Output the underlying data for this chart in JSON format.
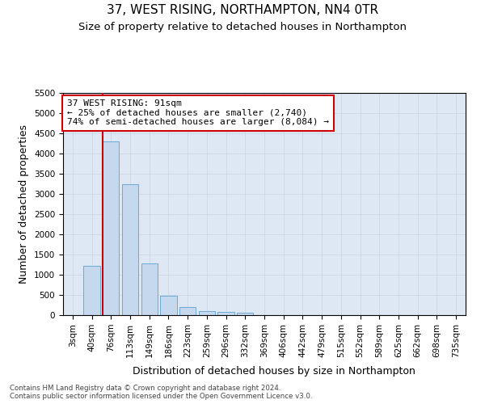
{
  "title": "37, WEST RISING, NORTHAMPTON, NN4 0TR",
  "subtitle": "Size of property relative to detached houses in Northampton",
  "xlabel": "Distribution of detached houses by size in Northampton",
  "ylabel": "Number of detached properties",
  "footer_line1": "Contains HM Land Registry data © Crown copyright and database right 2024.",
  "footer_line2": "Contains public sector information licensed under the Open Government Licence v3.0.",
  "bar_labels": [
    "3sqm",
    "40sqm",
    "76sqm",
    "113sqm",
    "149sqm",
    "186sqm",
    "223sqm",
    "259sqm",
    "296sqm",
    "332sqm",
    "369sqm",
    "406sqm",
    "442sqm",
    "479sqm",
    "515sqm",
    "552sqm",
    "589sqm",
    "625sqm",
    "662sqm",
    "698sqm",
    "735sqm"
  ],
  "bar_values": [
    0,
    1230,
    4300,
    3250,
    1280,
    480,
    210,
    100,
    75,
    55,
    0,
    0,
    0,
    0,
    0,
    0,
    0,
    0,
    0,
    0,
    0
  ],
  "bar_color": "#c5d8ee",
  "bar_edgecolor": "#6aaad4",
  "red_line_x": 1.575,
  "red_line_color": "#cc0000",
  "annotation_text": "37 WEST RISING: 91sqm\n← 25% of detached houses are smaller (2,740)\n74% of semi-detached houses are larger (8,084) →",
  "annotation_box_color": "#ffffff",
  "annotation_box_edgecolor": "#cc0000",
  "ylim": [
    0,
    5500
  ],
  "yticks": [
    0,
    500,
    1000,
    1500,
    2000,
    2500,
    3000,
    3500,
    4000,
    4500,
    5000,
    5500
  ],
  "background_color": "#ffffff",
  "grid_color": "#c8d4e0",
  "title_fontsize": 11,
  "subtitle_fontsize": 9.5,
  "axis_label_fontsize": 9,
  "tick_fontsize": 7.5,
  "annotation_fontsize": 8
}
